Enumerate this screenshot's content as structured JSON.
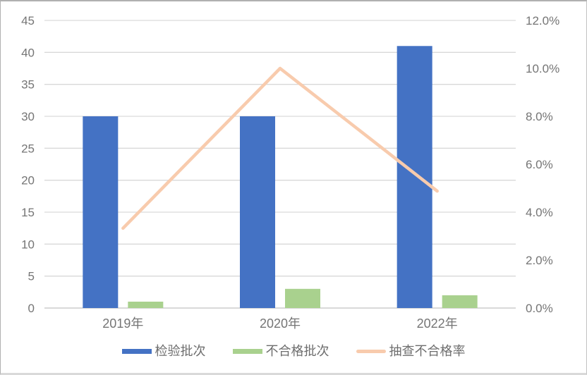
{
  "chart_data": {
    "type": "combo-bar-line",
    "categories": [
      "2019年",
      "2020年",
      "2022年"
    ],
    "series": [
      {
        "name": "检验批次",
        "type": "bar",
        "axis": "left",
        "color": "#4472C4",
        "values": [
          30,
          30,
          41
        ]
      },
      {
        "name": "不合格批次",
        "type": "bar",
        "axis": "left",
        "color": "#A9D18E",
        "values": [
          1,
          3,
          2
        ]
      },
      {
        "name": "抽查不合格率",
        "type": "line",
        "axis": "right",
        "color": "#F8CBAD",
        "values": [
          3.33,
          10.0,
          4.88
        ]
      }
    ],
    "left_axis": {
      "min": 0,
      "max": 45,
      "step": 5,
      "tick_labels": [
        "0",
        "5",
        "10",
        "15",
        "20",
        "25",
        "30",
        "35",
        "40",
        "45"
      ]
    },
    "right_axis": {
      "min": 0,
      "max": 12,
      "step": 2,
      "tick_labels": [
        "0.0%",
        "2.0%",
        "4.0%",
        "6.0%",
        "8.0%",
        "10.0%",
        "12.0%"
      ]
    },
    "grid": true,
    "legend_position": "bottom",
    "colors": {
      "grid": "#D9D9D9",
      "axis_line": "#D9D9D9",
      "axis_text": "#757575",
      "background": "#FFFFFF"
    }
  }
}
